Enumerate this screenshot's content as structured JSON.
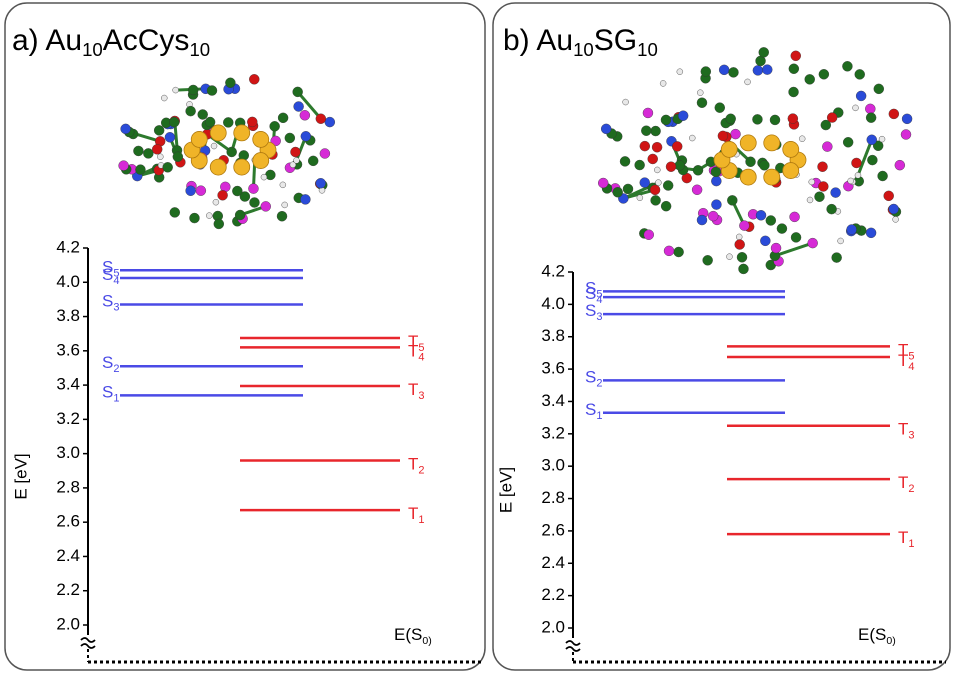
{
  "chart_data": [
    {
      "type": "energy-levels",
      "title": [
        {
          "text": "a) Au"
        },
        {
          "text": "10",
          "sub": true
        },
        {
          "text": "AcCys"
        },
        {
          "text": "10",
          "sub": true
        }
      ],
      "ylabel": "E [eV]",
      "baseline_label": [
        {
          "text": "E(S"
        },
        {
          "text": "0)",
          "sub": true
        }
      ],
      "ylim": [
        2.0,
        4.2
      ],
      "yticks": [
        {
          "value": 2.0,
          "label": "2.0"
        },
        {
          "value": 2.2,
          "label": "2.2"
        },
        {
          "value": 2.4,
          "label": "2.4"
        },
        {
          "value": 2.6,
          "label": "2.6"
        },
        {
          "value": 2.8,
          "label": "2.8"
        },
        {
          "value": 3.0,
          "label": "3.0"
        },
        {
          "value": 3.2,
          "label": "3.2"
        },
        {
          "value": 3.4,
          "label": "3.4"
        },
        {
          "value": 3.6,
          "label": "3.6"
        },
        {
          "value": 3.8,
          "label": "3.8"
        },
        {
          "value": 4.0,
          "label": "4.0"
        },
        {
          "value": 4.2,
          "label": "4.2"
        }
      ],
      "series": [
        {
          "name": "S",
          "color": "#4a4ae6",
          "labels": [
            "1",
            "2",
            "3",
            "4",
            "5"
          ],
          "values": [
            3.34,
            3.51,
            3.87,
            4.025,
            4.07
          ]
        },
        {
          "name": "T",
          "color": "#e8262c",
          "labels": [
            "1",
            "2",
            "3",
            "4",
            "5"
          ],
          "values": [
            2.67,
            2.96,
            3.395,
            3.62,
            3.675
          ]
        }
      ]
    },
    {
      "type": "energy-levels",
      "title": [
        {
          "text": "b) Au"
        },
        {
          "text": "10",
          "sub": true
        },
        {
          "text": "SG"
        },
        {
          "text": "10",
          "sub": true
        }
      ],
      "ylabel": "E [eV]",
      "baseline_label": [
        {
          "text": "E(S"
        },
        {
          "text": "0)",
          "sub": true
        }
      ],
      "ylim": [
        2.0,
        4.2
      ],
      "yticks": [
        {
          "value": 2.0,
          "label": "2.0"
        },
        {
          "value": 2.2,
          "label": "2.2"
        },
        {
          "value": 2.4,
          "label": "2.4"
        },
        {
          "value": 2.6,
          "label": "2.6"
        },
        {
          "value": 2.8,
          "label": "2.8"
        },
        {
          "value": 3.0,
          "label": "3.0"
        },
        {
          "value": 3.2,
          "label": "3.2"
        },
        {
          "value": 3.4,
          "label": "3.4"
        },
        {
          "value": 3.6,
          "label": "3.6"
        },
        {
          "value": 3.8,
          "label": "3.8"
        },
        {
          "value": 4.0,
          "label": "4.0"
        },
        {
          "value": 4.2,
          "label": "4.2"
        }
      ],
      "series": [
        {
          "name": "S",
          "color": "#4a4ae6",
          "labels": [
            "1",
            "2",
            "3",
            "4",
            "5"
          ],
          "values": [
            3.33,
            3.53,
            3.94,
            4.045,
            4.08
          ]
        },
        {
          "name": "T",
          "color": "#e8262c",
          "labels": [
            "1",
            "2",
            "3",
            "4",
            "5"
          ],
          "values": [
            2.58,
            2.92,
            3.25,
            3.675,
            3.74
          ]
        }
      ]
    }
  ]
}
